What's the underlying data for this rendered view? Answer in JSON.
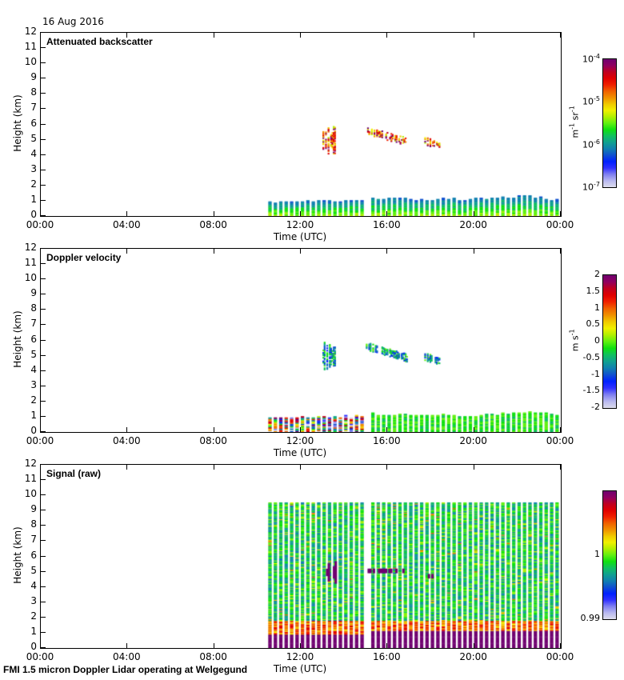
{
  "header": {
    "date": "16 Aug 2016"
  },
  "footer": {
    "caption": "FMI 1.5 micron Doppler Lidar operating at Welgegund"
  },
  "colormap": [
    "#dcdcec",
    "#b8b8f0",
    "#8080f0",
    "#3030ff",
    "#0020ff",
    "#1050d0",
    "#1080b0",
    "#10a090",
    "#10c060",
    "#10e010",
    "#60f010",
    "#b0f000",
    "#f0f000",
    "#f0c800",
    "#f09000",
    "#f06000",
    "#f02000",
    "#e00000",
    "#c00020",
    "#900060",
    "#700070"
  ],
  "chart_data": [
    {
      "type": "heatmap",
      "title": "Attenuated backscatter",
      "xlabel": "Time (UTC)",
      "ylabel": "Height (km)",
      "xticks": [
        "00:00",
        "04:00",
        "08:00",
        "12:00",
        "16:00",
        "20:00",
        "00:00"
      ],
      "xlim_hours": [
        0,
        24
      ],
      "yticks": [
        "0",
        "1",
        "2",
        "3",
        "4",
        "5",
        "6",
        "7",
        "8",
        "9",
        "10",
        "11",
        "12"
      ],
      "ylim_km": [
        0,
        12
      ],
      "colorbar": {
        "scale": "log",
        "ticks": [
          {
            "base": "10",
            "exp": "-4"
          },
          {
            "base": "10",
            "exp": "-5"
          },
          {
            "base": "10",
            "exp": "-6"
          },
          {
            "base": "10",
            "exp": "-7"
          }
        ],
        "unit_parts": [
          {
            "t": "m",
            "e": "-1"
          },
          {
            "t": " sr",
            "e": "-1"
          }
        ],
        "range": [
          1e-07,
          0.0001
        ]
      },
      "data_summary": {
        "data_start_hour": 10.5,
        "data_gap_hours": [
          14.8,
          15.1
        ],
        "boundary_layer_top_km": [
          {
            "hour": 10.5,
            "km": 0.9
          },
          {
            "hour": 14.8,
            "km": 1.0
          },
          {
            "hour": 15.1,
            "km": 1.15
          },
          {
            "hour": 19.5,
            "km": 1.05
          },
          {
            "hour": 22.5,
            "km": 1.3
          },
          {
            "hour": 24,
            "km": 1.0
          }
        ],
        "cloud_features": [
          {
            "hour_start": 13.0,
            "hour_end": 13.6,
            "km_low": 3.8,
            "km_high": 6.1
          },
          {
            "hour_start": 15.0,
            "hour_end": 16.9,
            "km_low": 4.5,
            "km_high": 5.6
          },
          {
            "hour_start": 17.7,
            "hour_end": 18.4,
            "km_low": 4.5,
            "km_high": 4.9
          }
        ],
        "cloud_value_range": [
          3e-06,
          0.0001
        ],
        "boundary_layer_value_range": [
          3e-07,
          3e-06
        ]
      }
    },
    {
      "type": "heatmap",
      "title": "Doppler velocity",
      "xlabel": "Time (UTC)",
      "ylabel": "Height (km)",
      "xticks": [
        "00:00",
        "04:00",
        "08:00",
        "12:00",
        "16:00",
        "20:00",
        "00:00"
      ],
      "xlim_hours": [
        0,
        24
      ],
      "yticks": [
        "0",
        "1",
        "2",
        "3",
        "4",
        "5",
        "6",
        "7",
        "8",
        "9",
        "10",
        "11",
        "12"
      ],
      "ylim_km": [
        0,
        12
      ],
      "colorbar": {
        "scale": "linear",
        "ticks": [
          "2",
          "1.5",
          "1",
          "0.5",
          "0",
          "-0.5",
          "-1",
          "-1.5",
          "-2"
        ],
        "unit_parts": [
          {
            "t": "m",
            "e": ""
          },
          {
            "t": " s",
            "e": "-1"
          }
        ],
        "range": [
          -2,
          2
        ]
      },
      "data_summary": {
        "data_start_hour": 10.5,
        "data_gap_hours": [
          14.8,
          15.1
        ],
        "turbulent_period_hours": [
          10.5,
          14.8
        ],
        "turbulent_value_range": [
          -2,
          2
        ],
        "calm_value_range": [
          -0.5,
          0.3
        ],
        "cloud_value_range": [
          -1.5,
          -0.3
        ]
      }
    },
    {
      "type": "heatmap",
      "title": "Signal (raw)",
      "xlabel": "Time (UTC)",
      "ylabel": "Height (km)",
      "xticks": [
        "00:00",
        "04:00",
        "08:00",
        "12:00",
        "16:00",
        "20:00",
        "00:00"
      ],
      "xlim_hours": [
        0,
        24
      ],
      "yticks": [
        "0",
        "1",
        "2",
        "3",
        "4",
        "5",
        "6",
        "7",
        "8",
        "9",
        "10",
        "11",
        "12"
      ],
      "ylim_km": [
        0,
        12
      ],
      "colorbar": {
        "scale": "linear",
        "ticks": [
          "1",
          "0.99"
        ],
        "unit_parts": [],
        "range": [
          0.99,
          1.01
        ]
      },
      "data_summary": {
        "data_start_hour": 10.5,
        "data_gap_hours": [
          14.8,
          15.1
        ],
        "max_range_km": 9.5,
        "near_surface_saturated_km": 0.9,
        "background_value": 1.0
      }
    }
  ]
}
